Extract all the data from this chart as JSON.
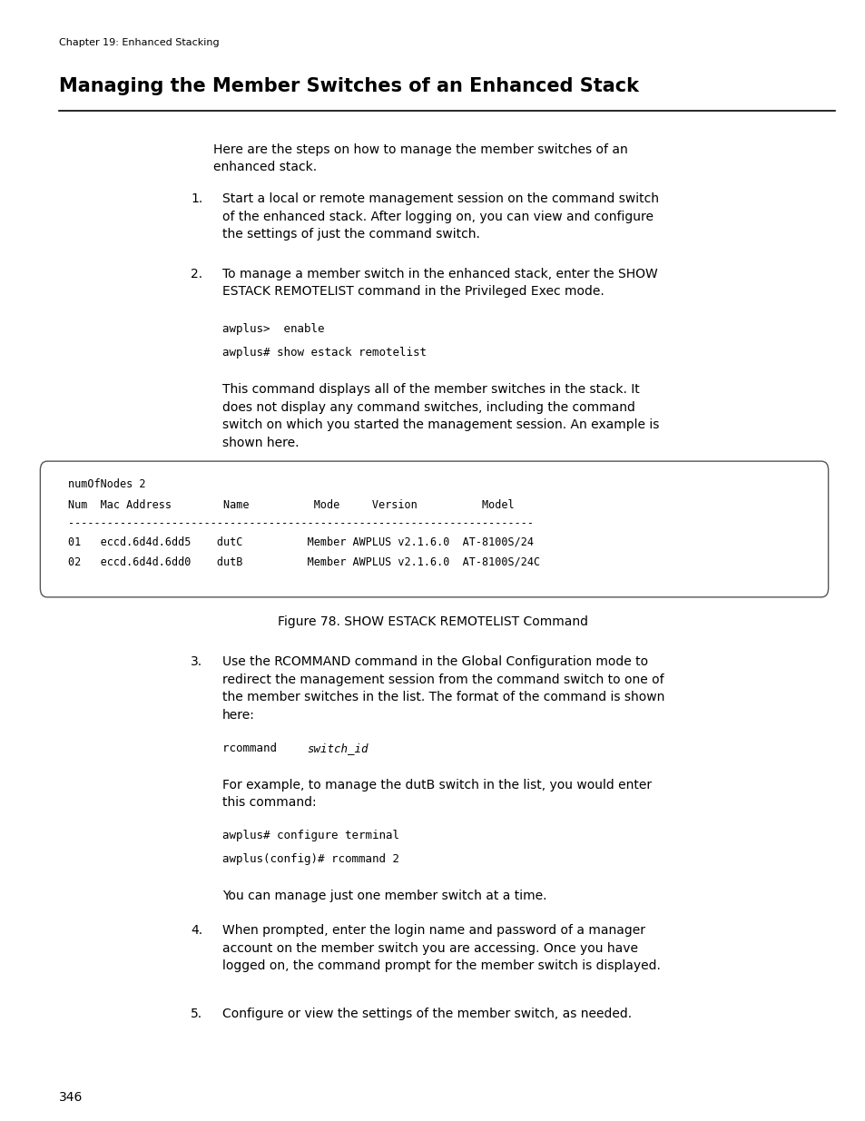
{
  "page_width": 9.54,
  "page_height": 12.35,
  "bg_color": "#ffffff",
  "chapter_header": "Chapter 19: Enhanced Stacking",
  "title": "Managing the Member Switches of an Enhanced Stack",
  "intro_text": "Here are the steps on how to manage the member switches of an\nenhanced stack.",
  "item1_text": "Start a local or remote management session on the command switch\nof the enhanced stack. After logging on, you can view and configure\nthe settings of just the command switch.",
  "item2_text": "To manage a member switch in the enhanced stack, enter the SHOW\nESTACK REMOTELIST command in the Privileged Exec mode.",
  "code1_line1": "awplus>  enable",
  "code1_line2": "awplus# show estack remotelist",
  "item2_desc": "This command displays all of the member switches in the stack. It\ndoes not display any command switches, including the command\nswitch on which you started the management session. An example is\nshown here.",
  "terminal_line1": "numOfNodes 2",
  "terminal_line2": "Num  Mac Address        Name          Mode     Version          Model",
  "terminal_line3": "------------------------------------------------------------------------",
  "terminal_line4": "01   eccd.6d4d.6dd5    dutC          Member AWPLUS v2.1.6.0  AT-8100S/24",
  "terminal_line5": "02   eccd.6d4d.6dd0    dutB          Member AWPLUS v2.1.6.0  AT-8100S/24C",
  "figure_caption": "Figure 78. SHOW ESTACK REMOTELIST Command",
  "item3_text": "Use the RCOMMAND command in the Global Configuration mode to\nredirect the management session from the command switch to one of\nthe member switches in the list. The format of the command is shown\nhere:",
  "code2_regular": "rcommand ",
  "code2_italic": "switch_id",
  "item3_desc": "For example, to manage the dutB switch in the list, you would enter\nthis command:",
  "code3_line1": "awplus# configure terminal",
  "code3_line2": "awplus(config)# rcommand 2",
  "item3_desc2": "You can manage just one member switch at a time.",
  "item4_text": "When prompted, enter the login name and password of a manager\naccount on the member switch you are accessing. Once you have\nlogged on, the command prompt for the member switch is displayed.",
  "item5_text": "Configure or view the settings of the member switch, as needed.",
  "page_number": "346",
  "title_fontsize": 15,
  "body_fontsize": 10,
  "code_fontsize": 9,
  "header_fontsize": 8
}
